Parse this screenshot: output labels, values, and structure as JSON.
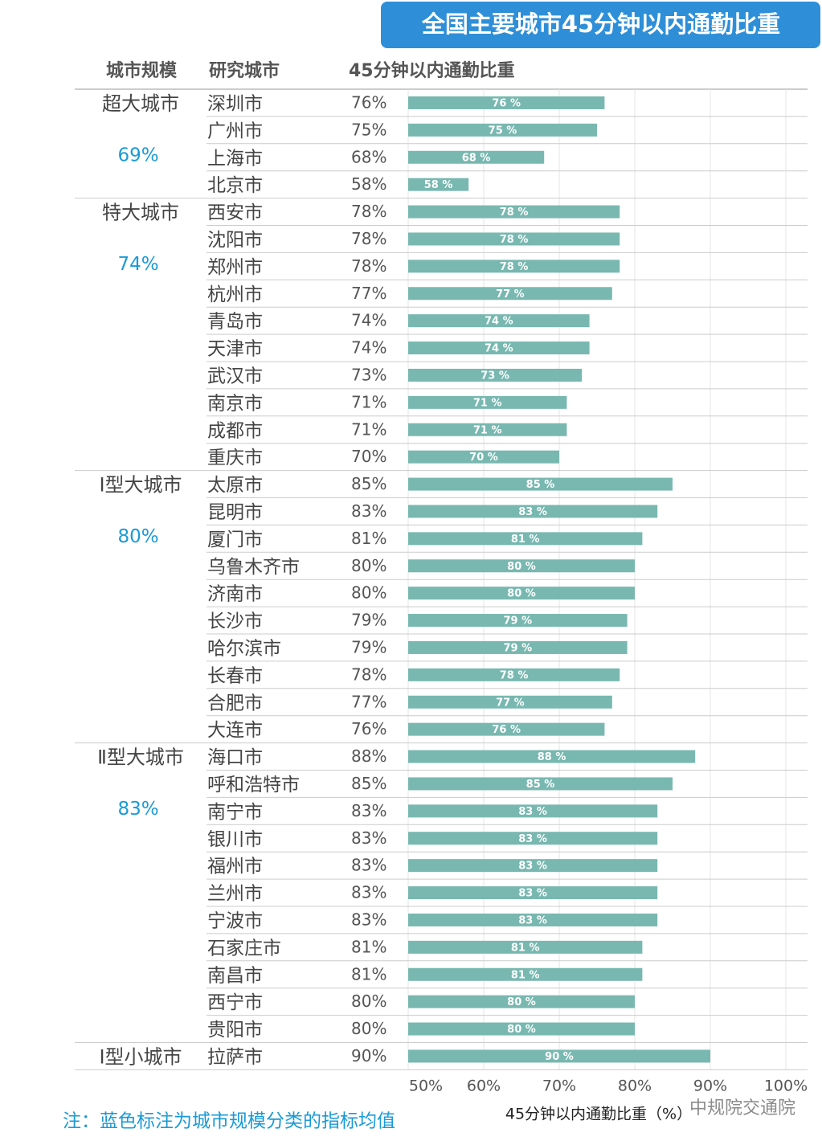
{
  "chart_data": {
    "type": "bar",
    "title": "全国主要城市45分钟以内通勤比重",
    "columns": [
      "城市规模",
      "研究城市",
      "45分钟以内通勤比重"
    ],
    "xlabel": "45分钟以内通勤比重（%）",
    "note": "注：蓝色标注为城市规模分类的指标均值",
    "watermark": "中规院交通院",
    "color": "#78b8b0",
    "average_color": "#1a9ad6",
    "grid": true,
    "xlim": [
      50,
      100
    ],
    "xticks": [
      {
        "value": 50,
        "label": "50%"
      },
      {
        "value": 60,
        "label": "60%"
      },
      {
        "value": 70,
        "label": "70%"
      },
      {
        "value": 80,
        "label": "80%"
      },
      {
        "value": 90,
        "label": "90%"
      },
      {
        "value": 100,
        "label": "100%"
      }
    ],
    "groups": [
      {
        "name": "超大城市",
        "average": "69%",
        "categories": [
          "深圳市",
          "广州市",
          "上海市",
          "北京市"
        ],
        "shares": [
          "76%",
          "75%",
          "68%",
          "58%"
        ],
        "values": [
          76,
          75,
          68,
          58
        ],
        "value_labels": [
          "76 %",
          "75 %",
          "68 %",
          "58 %"
        ]
      },
      {
        "name": "特大城市",
        "average": "74%",
        "categories": [
          "西安市",
          "沈阳市",
          "郑州市",
          "杭州市",
          "青岛市",
          "天津市",
          "武汉市",
          "南京市",
          "成都市",
          "重庆市"
        ],
        "shares": [
          "78%",
          "78%",
          "78%",
          "77%",
          "74%",
          "74%",
          "73%",
          "71%",
          "71%",
          "70%"
        ],
        "values": [
          78,
          78,
          78,
          77,
          74,
          74,
          73,
          71,
          71,
          70
        ],
        "value_labels": [
          "78 %",
          "78 %",
          "78 %",
          "77 %",
          "74 %",
          "74 %",
          "73 %",
          "71 %",
          "71 %",
          "70 %"
        ]
      },
      {
        "name": "Ⅰ型大城市",
        "average": "80%",
        "categories": [
          "太原市",
          "昆明市",
          "厦门市",
          "乌鲁木齐市",
          "济南市",
          "长沙市",
          "哈尔滨市",
          "长春市",
          "合肥市",
          "大连市"
        ],
        "shares": [
          "85%",
          "83%",
          "81%",
          "80%",
          "80%",
          "79%",
          "79%",
          "78%",
          "77%",
          "76%"
        ],
        "values": [
          85,
          83,
          81,
          80,
          80,
          79,
          79,
          78,
          77,
          76
        ],
        "value_labels": [
          "85 %",
          "83 %",
          "81 %",
          "80 %",
          "80 %",
          "79 %",
          "79 %",
          "78 %",
          "77 %",
          "76 %"
        ]
      },
      {
        "name": "Ⅱ型大城市",
        "average": "83%",
        "categories": [
          "海口市",
          "呼和浩特市",
          "南宁市",
          "银川市",
          "福州市",
          "兰州市",
          "宁波市",
          "石家庄市",
          "南昌市",
          "西宁市",
          "贵阳市"
        ],
        "shares": [
          "88%",
          "85%",
          "83%",
          "83%",
          "83%",
          "83%",
          "83%",
          "81%",
          "81%",
          "80%",
          "80%"
        ],
        "values": [
          88,
          85,
          83,
          83,
          83,
          83,
          83,
          81,
          81,
          80,
          80
        ],
        "value_labels": [
          "88 %",
          "85 %",
          "83 %",
          "83 %",
          "83 %",
          "83 %",
          "83 %",
          "81 %",
          "81 %",
          "80 %",
          "80 %"
        ]
      },
      {
        "name": "Ⅰ型小城市",
        "categories": [
          "拉萨市"
        ],
        "shares": [
          "90%"
        ],
        "values": [
          90
        ],
        "value_labels": [
          "90 %"
        ]
      }
    ]
  }
}
